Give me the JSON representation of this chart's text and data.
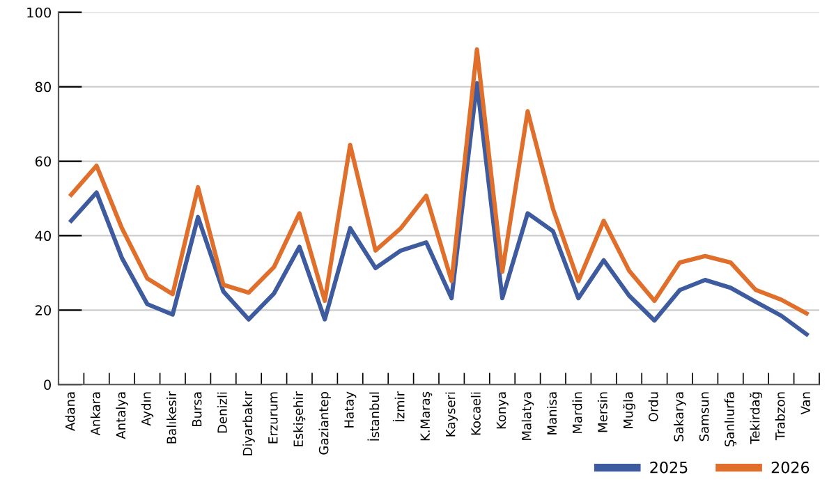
{
  "chart_data": {
    "type": "line",
    "categories": [
      "Adana",
      "Ankara",
      "Antalya",
      "Aydın",
      "Balıkesir",
      "Bursa",
      "Denizli",
      "Diyarbakır",
      "Erzurum",
      "Eskişehir",
      "Gaziantep",
      "Hatay",
      "İstanbul",
      "İzmir",
      "K.Maraş",
      "Kayseri",
      "Kocaeli",
      "Konya",
      "Malatya",
      "Manisa",
      "Mardin",
      "Mersin",
      "Muğla",
      "Ordu",
      "Sakarya",
      "Samsun",
      "Şanlıurfa",
      "Tekirdağ",
      "Trabzon",
      "Van"
    ],
    "series": [
      {
        "name": "2025",
        "color": "#3d5b9e",
        "values": [
          44,
          51.6,
          34,
          21.6,
          18.8,
          45,
          25,
          17.5,
          24.5,
          37,
          17.5,
          42,
          31.3,
          36,
          38.2,
          23.2,
          81,
          23.2,
          46,
          41.2,
          23.2,
          33.4,
          23.9,
          17.2,
          25.4,
          28.1,
          26,
          22.2,
          18.5,
          13.5
        ]
      },
      {
        "name": "2026",
        "color": "#e06f2c",
        "values": [
          51,
          58.8,
          42,
          28.5,
          24.3,
          53,
          26.8,
          24.7,
          31.6,
          46,
          22.5,
          64.4,
          36,
          42,
          50.7,
          27.8,
          90,
          30.3,
          73.4,
          47.2,
          27.8,
          44,
          30.6,
          22.5,
          32.8,
          34.5,
          32.8,
          25.4,
          22.8,
          19.1
        ]
      }
    ],
    "ylim": [
      0,
      100
    ],
    "yticks": [
      0,
      20,
      40,
      60,
      80,
      100
    ],
    "grid": "y",
    "legend": "bottom right",
    "marker": "none",
    "line_style": "solid"
  }
}
